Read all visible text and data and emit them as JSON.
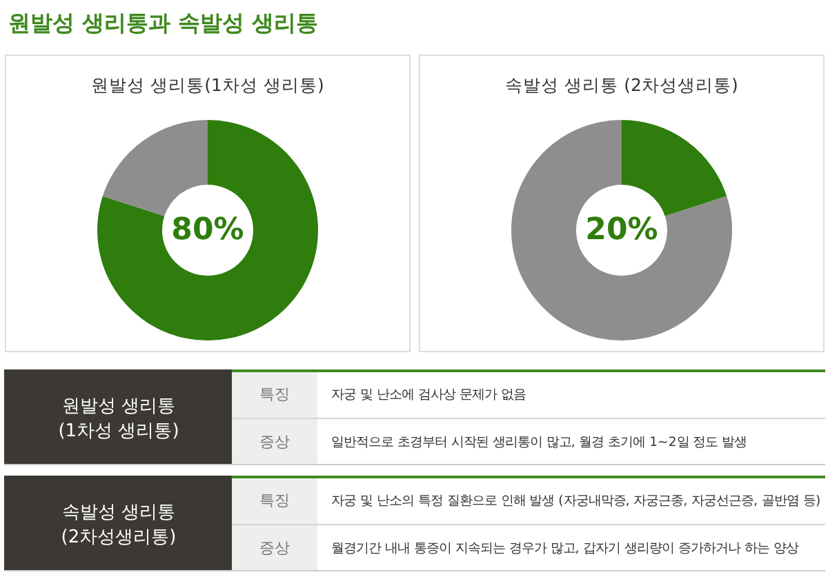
{
  "chart_data": [
    {
      "type": "other",
      "title": "원발성 생리통과 속발성 생리통"
    },
    {
      "type": "donut",
      "title": "원발성 생리통(1차성 생리통)",
      "categories": [
        null,
        null
      ],
      "values": [
        80,
        20
      ],
      "colors": [
        "#2f7d0c",
        "#8e8e8e"
      ],
      "value_labels": [
        "80%",
        null
      ]
    },
    {
      "type": "donut",
      "title": "속발성 생리통 (2차성생리통)",
      "categories": [
        null,
        null
      ],
      "values": [
        20,
        80
      ],
      "colors": [
        "#2f7d0c",
        "#8e8e8e"
      ],
      "value_labels": [
        "20%",
        null
      ]
    },
    {
      "type": "other",
      "annotations": [
        "원발성 생리통\n(1차성 생리통)",
        "특징",
        "자궁 및 난소에 검사상 문제가 없음",
        "증상",
        "일반적으로 초경부터 시작된 생리통이 많고, 월경 초기에 1~2일 정도 발생",
        "속발성 생리통\n(2차성생리통)",
        "특징",
        "자궁 및 난소의 특정 질환으로 인해 발생 (자궁내막증, 자궁근종, 자궁선근증, 골반염 등)",
        "증상",
        "월경기간 내내 통증이 지속되는 경우가 많고, 갑자기 생리량이 증가하거나 하는 양상"
      ]
    }
  ]
}
